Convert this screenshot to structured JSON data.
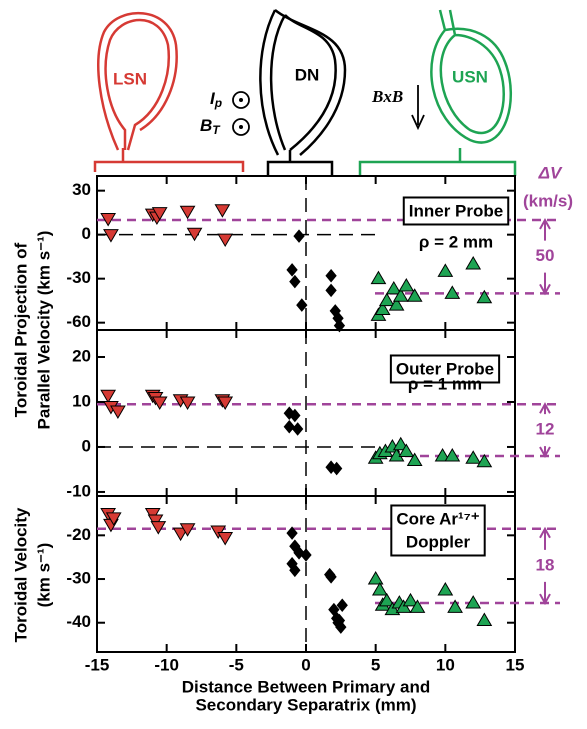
{
  "diagram": {
    "labels": [
      "LSN",
      "DN",
      "USN"
    ],
    "ip": {
      "text": "I",
      "sub": "p"
    },
    "bt": {
      "text": "B",
      "sub": "T"
    },
    "drift": "BxB",
    "dv_title": "ΔV",
    "dv_units": "(km/s)"
  },
  "y_labels": [
    "Toroidal Projection of",
    "Parallel Velocity (km s⁻¹)",
    "Toroidal Velocity",
    "(km s⁻¹)"
  ],
  "chart_data": [
    {
      "type": "scatter",
      "annotation": [
        "Inner Probe",
        "ρ = 2 mm"
      ],
      "xlim": [
        -15,
        15
      ],
      "xticks": [
        -15,
        -10,
        -5,
        0,
        5,
        10,
        15
      ],
      "ylim": [
        -65,
        40
      ],
      "yticks": [
        30,
        0,
        -30,
        -60
      ],
      "hline": 0,
      "vline": 0,
      "ref_lines": [
        10,
        -40
      ],
      "delta": 50,
      "series": [
        {
          "marker": "down",
          "color": "#d63a34",
          "x": [
            -14.2,
            -14,
            -11,
            -10.7,
            -10.5,
            -8.5,
            -8,
            -6,
            -5.8
          ],
          "values": [
            11,
            0,
            14,
            12,
            15,
            16,
            1,
            17,
            -3
          ]
        },
        {
          "marker": "diamond",
          "color": "#000000",
          "x": [
            -0.5,
            -1,
            -0.8,
            -0.3,
            1.8,
            1.8,
            2.1,
            2.3,
            2.4
          ],
          "values": [
            -1,
            -24,
            -32,
            -48,
            -28,
            -38,
            -52,
            -57,
            -62
          ]
        },
        {
          "marker": "up",
          "color": "#1ea453",
          "x": [
            5.2,
            5.2,
            5.5,
            5.8,
            6.3,
            6.5,
            6.8,
            7.2,
            7.8,
            10,
            10.5,
            12,
            12.8
          ],
          "values": [
            -30,
            -55,
            -51,
            -45,
            -37,
            -48,
            -42,
            -35,
            -42,
            -25,
            -40,
            -20,
            -43
          ]
        }
      ]
    },
    {
      "type": "scatter",
      "annotation": [
        "Outer Probe",
        "ρ = 1 mm"
      ],
      "xlim": [
        -15,
        15
      ],
      "xticks": [
        -15,
        -10,
        -5,
        0,
        5,
        10,
        15
      ],
      "ylim": [
        -10.9,
        26
      ],
      "yticks": [
        20,
        10,
        0,
        -10
      ],
      "hline": 0,
      "vline": 0,
      "ref_lines": [
        9.5,
        -2
      ],
      "delta": 12,
      "series": [
        {
          "marker": "down",
          "color": "#d63a34",
          "x": [
            -14.2,
            -14,
            -13.5,
            -11,
            -10.8,
            -10.5,
            -9,
            -8.5,
            -6,
            -5.8
          ],
          "values": [
            11.5,
            9,
            8,
            11.5,
            11,
            10,
            10.5,
            10,
            10.5,
            10
          ]
        },
        {
          "marker": "diamond",
          "color": "#000000",
          "x": [
            -1.2,
            -0.8,
            -1.2,
            -0.6,
            1.8,
            2.2
          ],
          "values": [
            7.5,
            7,
            4.5,
            4,
            -4.5,
            -4.8
          ]
        },
        {
          "marker": "up",
          "color": "#1ea453",
          "x": [
            5,
            5.3,
            5.7,
            6.2,
            6.5,
            6.8,
            7.2,
            7.8,
            9.8,
            10.5,
            12,
            12.8
          ],
          "values": [
            -2.5,
            -1.5,
            -1,
            0,
            -2,
            0.5,
            -1,
            -3,
            -2,
            -2,
            -2.5,
            -3.3
          ]
        }
      ]
    },
    {
      "type": "scatter",
      "annotation": [
        "Core Ar¹⁷⁺",
        "Doppler"
      ],
      "xlabel": [
        "Distance Between Primary and",
        "Secondary Separatrix (mm)"
      ],
      "xlim": [
        -15,
        15
      ],
      "xticks": [
        -15,
        -10,
        -5,
        0,
        5,
        10,
        15
      ],
      "ylim": [
        -46.7,
        -11
      ],
      "yticks": [
        -20,
        -30,
        -40
      ],
      "vline": 0,
      "ref_lines": [
        -18.5,
        -35.5
      ],
      "delta": 18,
      "series": [
        {
          "marker": "down",
          "color": "#d63a34",
          "x": [
            -14.2,
            -14,
            -13.8,
            -11,
            -10.8,
            -10.6,
            -9,
            -8.5,
            -6.3,
            -5.8
          ],
          "values": [
            -15,
            -17.5,
            -16,
            -15,
            -16.5,
            -18,
            -19.5,
            -18.5,
            -19,
            -20.5
          ]
        },
        {
          "marker": "diamond",
          "color": "#000000",
          "x": [
            -1,
            -0.8,
            -0.5,
            -1,
            -0.8,
            0,
            1.7,
            1.8,
            2,
            2.2,
            2.3,
            2.5,
            2.6,
            2.4
          ],
          "values": [
            -19.5,
            -22.5,
            -24,
            -26.5,
            -28,
            -24.5,
            -29,
            -29.5,
            -37,
            -39,
            -40,
            -41,
            -36,
            -39.5
          ]
        },
        {
          "marker": "up",
          "color": "#1ea453",
          "x": [
            5,
            5.3,
            5.5,
            5.8,
            6.2,
            6.7,
            7,
            7.5,
            8,
            10,
            10.7,
            12,
            12.8
          ],
          "values": [
            -30,
            -32.5,
            -36,
            -35,
            -37,
            -35.5,
            -36.5,
            -35,
            -36.5,
            -32.5,
            -36.5,
            -35.5,
            -39.5
          ]
        }
      ]
    }
  ]
}
